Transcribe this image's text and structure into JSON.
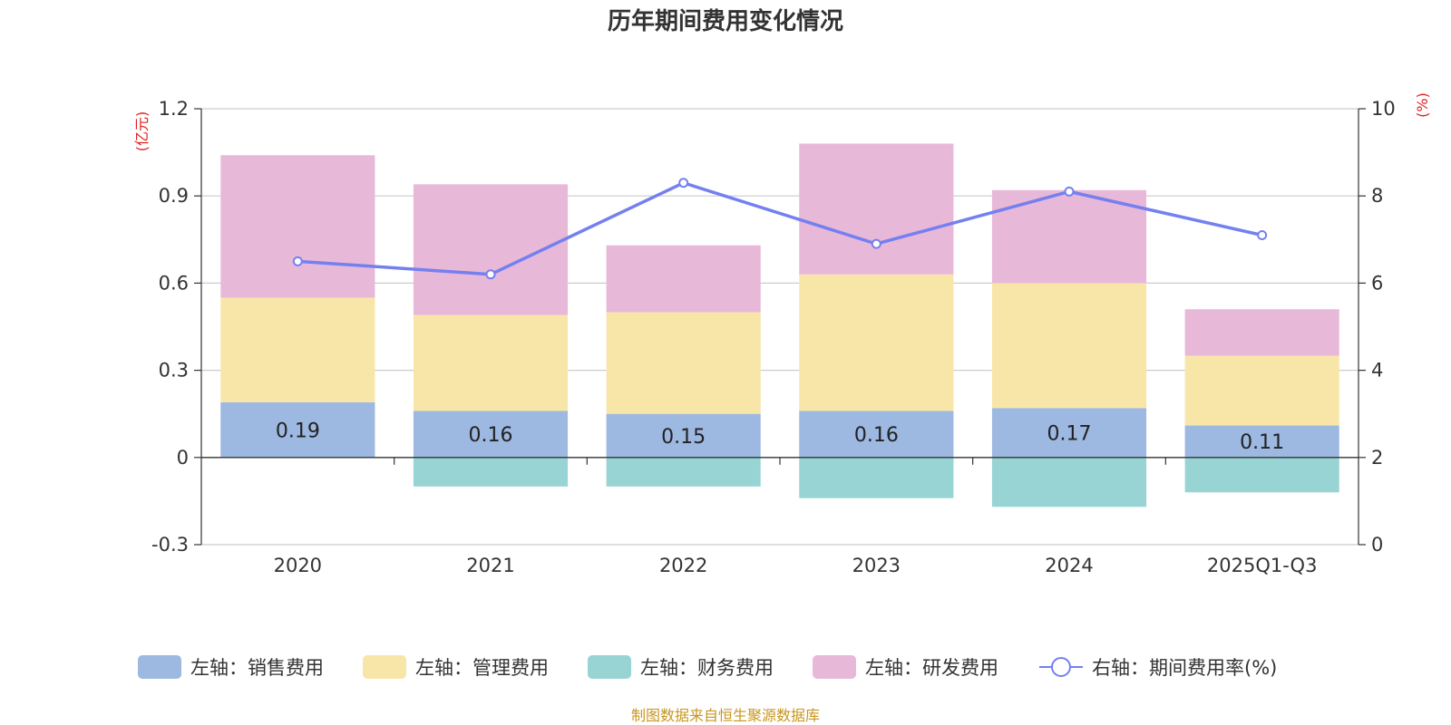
{
  "chart_data": {
    "type": "bar",
    "stacked": true,
    "title": "历年期间费用变化情况",
    "categories": [
      "2020",
      "2021",
      "2022",
      "2023",
      "2024",
      "2025Q1-Q3"
    ],
    "left_axis": {
      "unit": "(亿元)",
      "ylim": [
        -0.3,
        1.2
      ],
      "ticks": [
        -0.3,
        0,
        0.3,
        0.6,
        0.9,
        1.2
      ],
      "tick_labels": [
        "-0.3",
        "0",
        "0.3",
        "0.6",
        "0.9",
        "1.2"
      ]
    },
    "right_axis": {
      "unit": "(%)",
      "ylim": [
        0,
        10
      ],
      "ticks": [
        0,
        2,
        4,
        6,
        8,
        10
      ],
      "tick_labels": [
        "0",
        "2",
        "4",
        "6",
        "8",
        "10"
      ]
    },
    "series": [
      {
        "name": "左轴：销售费用",
        "axis": "left",
        "color": "#9db8e1",
        "values": [
          0.19,
          0.16,
          0.15,
          0.16,
          0.17,
          0.11
        ],
        "data_labels": [
          "0.19",
          "0.16",
          "0.15",
          "0.16",
          "0.17",
          "0.11"
        ]
      },
      {
        "name": "左轴：管理费用",
        "axis": "left",
        "color": "#f8e6a8",
        "values": [
          0.36,
          0.33,
          0.35,
          0.47,
          0.43,
          0.24
        ]
      },
      {
        "name": "左轴：财务费用",
        "axis": "left",
        "color": "#98d4d4",
        "values": [
          0.0,
          -0.1,
          -0.1,
          -0.14,
          -0.17,
          -0.12
        ]
      },
      {
        "name": "左轴：研发费用",
        "axis": "left",
        "color": "#e8b8d9",
        "values": [
          0.49,
          0.45,
          0.23,
          0.45,
          0.32,
          0.16
        ]
      },
      {
        "name": "右轴：期间费用率(%)",
        "axis": "right",
        "type": "line",
        "color": "#7480f0",
        "values": [
          6.5,
          6.2,
          8.3,
          6.9,
          8.1,
          7.1
        ]
      }
    ],
    "legend_position": "bottom",
    "grid": true
  },
  "source_note": "制图数据来自恒生聚源数据库"
}
